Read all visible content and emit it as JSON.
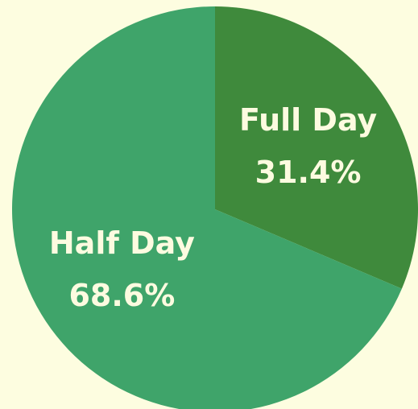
{
  "chart_data": {
    "type": "pie",
    "categories": [
      "Full Day",
      "Half Day"
    ],
    "values": [
      31.4,
      68.6
    ],
    "value_labels": [
      "31.4%",
      "68.6%"
    ],
    "colors": [
      "#3f8a3c",
      "#3fa46a"
    ]
  }
}
